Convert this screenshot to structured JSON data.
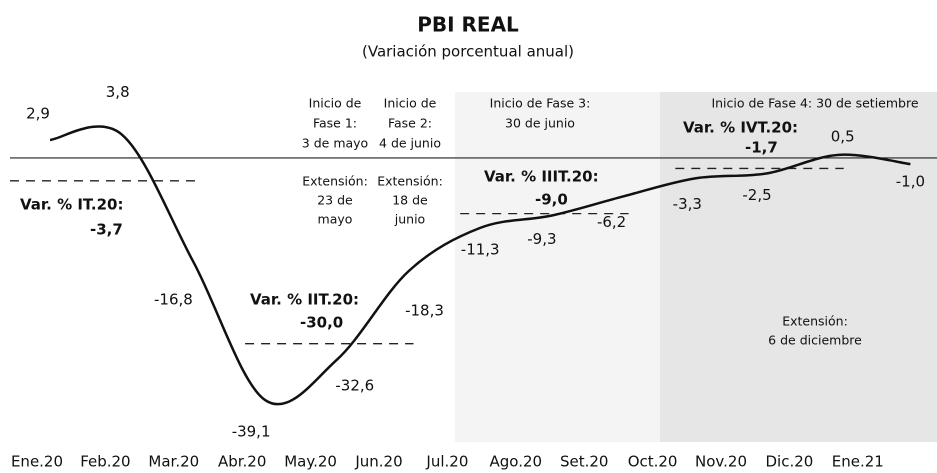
{
  "chart_data": {
    "type": "line",
    "title": "PBI REAL",
    "subtitle": "(Variación porcentual anual)",
    "categories": [
      "Ene.20",
      "Feb.20",
      "Mar.20",
      "Abr.20",
      "May.20",
      "Jun.20",
      "Jul.20",
      "Ago.20",
      "Set.20",
      "Oct.20",
      "Nov.20",
      "Dic.20",
      "Ene.21"
    ],
    "values": [
      2.9,
      3.8,
      -16.8,
      -39.1,
      -32.6,
      -18.3,
      -11.3,
      -9.3,
      -6.2,
      -3.3,
      -2.5,
      0.5,
      -1.0
    ],
    "value_labels": [
      "2,9",
      "3,8",
      "-16,8",
      "-39,1",
      "-32,6",
      "-18,3",
      "-11,3",
      "-9,3",
      "-6,2",
      "-3,3",
      "-2,5",
      "0,5",
      "-1,0"
    ],
    "color": "#111111",
    "ylim": [
      -42,
      10
    ],
    "quarters": [
      {
        "label": "Var. % IT.20:",
        "value": -3.7,
        "value_label": "-3,7"
      },
      {
        "label": "Var. % IIT.20:",
        "value": -30.0,
        "value_label": "-30,0"
      },
      {
        "label": "Var. % IIIT.20:",
        "value": -9.0,
        "value_label": "-9,0"
      },
      {
        "label": "Var. % IVT.20:",
        "value": -1.7,
        "value_label": "-1,7"
      }
    ],
    "annotations": [
      {
        "start": [
          "Inicio de",
          "Fase 1:",
          "3 de mayo"
        ],
        "extension": [
          "Extensión:",
          "23 de",
          "mayo"
        ]
      },
      {
        "start": [
          "Inicio de",
          "Fase 2:",
          "4 de junio"
        ],
        "extension": [
          "Extensión:",
          "18 de",
          "junio"
        ]
      },
      {
        "start": [
          "Inicio de Fase 3:",
          "30 de junio"
        ],
        "extension": []
      },
      {
        "start": [
          "Inicio de Fase 4: 30 de setiembre"
        ],
        "extension": [
          "Extensión:",
          "6 de diciembre"
        ]
      }
    ]
  }
}
